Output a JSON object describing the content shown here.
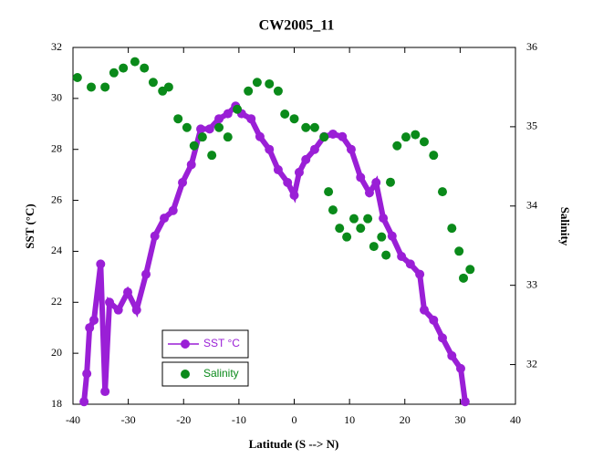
{
  "chart_data": {
    "type": "scatter",
    "title": "CW2005_11",
    "x_label": "Latitude (S --> N)",
    "y_label": "SST (°C)",
    "y2_label": "Salinity",
    "xlim": [
      -40,
      40
    ],
    "xticks": [
      -40,
      -30,
      -20,
      -10,
      0,
      10,
      20,
      30,
      40
    ],
    "ylim": [
      18,
      32
    ],
    "yticks": [
      18,
      20,
      22,
      24,
      26,
      28,
      30,
      32
    ],
    "y2lim": [
      31.5,
      36
    ],
    "y2ticks": [
      32,
      33,
      34,
      35,
      36
    ],
    "series": [
      {
        "name": "SST °C",
        "color": "#9a1fd6",
        "axis": "y",
        "x": [
          -38,
          -37.5,
          -37,
          -36.2,
          -35,
          -34.2,
          -33.4,
          -31.8,
          -30.1,
          -28.5,
          -26.8,
          -25.2,
          -23.5,
          -21.9,
          -20.2,
          -18.6,
          -16.9,
          -15.3,
          -13.6,
          -12,
          -10.6,
          -9.5,
          -7.8,
          -6.2,
          -4.5,
          -2.9,
          -1.2,
          0,
          0.9,
          2.1,
          3.7,
          5.4,
          7,
          8.7,
          10.3,
          12,
          13.6,
          14.8,
          16.1,
          17.7,
          19.4,
          21,
          22.7,
          23.5,
          25.2,
          26.8,
          28.5,
          30.1,
          30.9
        ],
        "values": [
          18.1,
          19.2,
          21,
          21.3,
          23.5,
          18.5,
          22,
          21.7,
          22.4,
          21.7,
          23.1,
          24.6,
          25.3,
          25.6,
          26.7,
          27.4,
          28.8,
          28.8,
          29.2,
          29.4,
          29.7,
          29.4,
          29.2,
          28.5,
          28,
          27.2,
          26.7,
          26.2,
          27.1,
          27.6,
          28,
          28.5,
          28.6,
          28.5,
          28,
          26.9,
          26.3,
          26.7,
          25.3,
          24.6,
          23.8,
          23.5,
          23.1,
          21.7,
          21.3,
          20.6,
          19.9,
          19.4,
          18.1
        ]
      },
      {
        "name": "Salinity",
        "color": "#0a8a1a",
        "axis": "y2",
        "x": [
          -39.2,
          -36.7,
          -34.2,
          -32.6,
          -30.9,
          -28.8,
          -27.1,
          -25.5,
          -23.8,
          -22.7,
          -21,
          -19.4,
          -18.1,
          -16.6,
          -14.9,
          -13.6,
          -12,
          -10.3,
          -8.3,
          -6.7,
          -4.5,
          -2.9,
          -1.7,
          0,
          2.1,
          3.7,
          5.4,
          6.2,
          7,
          8.2,
          9.5,
          10.8,
          12,
          13.3,
          14.4,
          15.8,
          16.6,
          17.4,
          18.6,
          20.2,
          21.9,
          23.5,
          25.2,
          26.8,
          28.5,
          29.8,
          30.6,
          31.8
        ],
        "values": [
          35.62,
          35.5,
          35.5,
          35.68,
          35.74,
          35.82,
          35.74,
          35.56,
          35.45,
          35.5,
          35.1,
          34.99,
          34.76,
          34.87,
          34.64,
          34.99,
          34.87,
          35.22,
          35.45,
          35.56,
          35.54,
          35.45,
          35.16,
          35.1,
          34.99,
          34.99,
          34.87,
          34.18,
          33.95,
          33.72,
          33.61,
          33.84,
          33.72,
          33.84,
          33.49,
          33.61,
          33.38,
          34.3,
          34.76,
          34.87,
          34.9,
          34.81,
          34.64,
          34.18,
          33.72,
          33.43,
          33.09,
          33.2
        ]
      }
    ]
  }
}
